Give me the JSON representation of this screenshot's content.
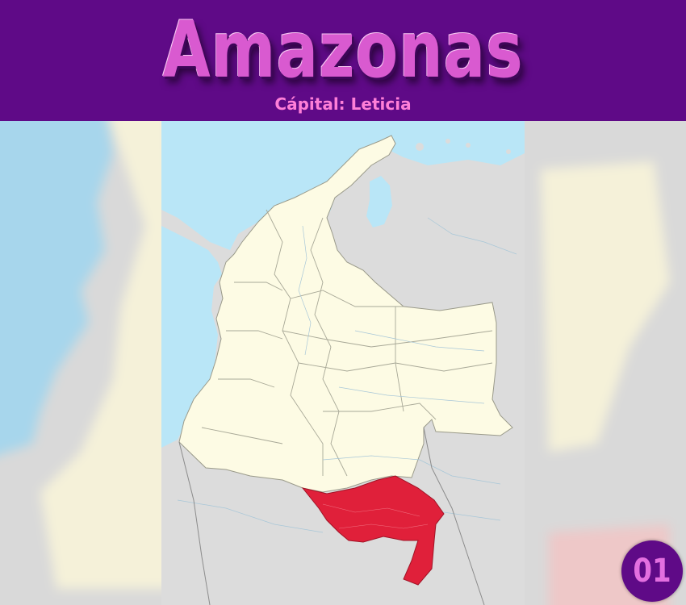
{
  "header": {
    "title": "Amazonas",
    "subtitle": "Cápital: Leticia"
  },
  "badge": {
    "number": "01"
  },
  "map": {
    "highlighted_region": "Amazonas",
    "colors": {
      "ocean": "#b9e6f7",
      "colombia_land": "#fdfbe4",
      "neighbor_land": "#dcdcdc",
      "highlight": "#e0203a",
      "border": "#9a9a8a",
      "river": "#a8c7d8"
    }
  },
  "theme": {
    "header_bg": "#5f0a87",
    "title_color": "#d95ad0",
    "subtitle_color": "#ff7fd8"
  }
}
